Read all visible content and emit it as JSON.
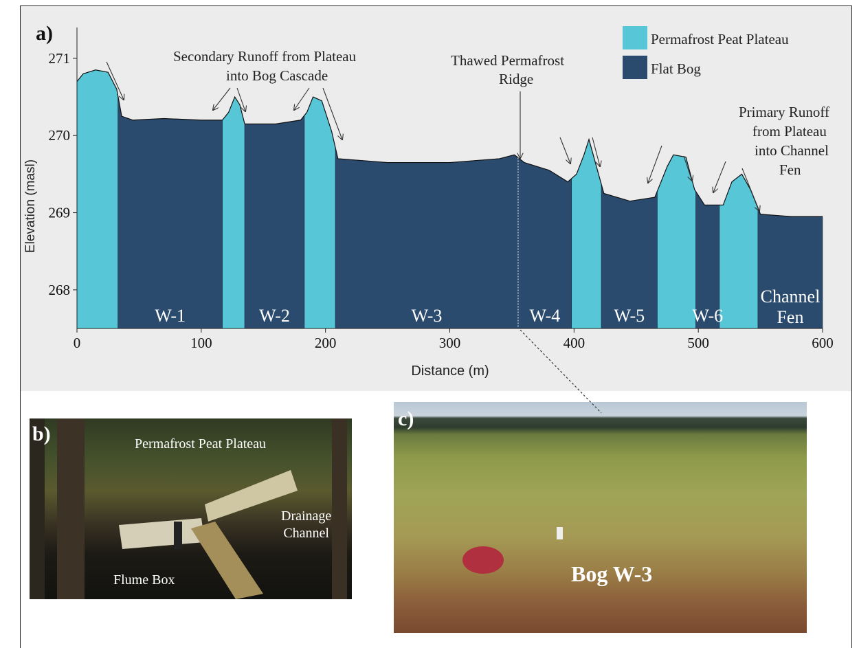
{
  "panels": {
    "a_label": "a)",
    "b_label": "b)",
    "c_label": "c)"
  },
  "annotations": {
    "secondary_runoff_line1": "Secondary Runoff from Plateau",
    "secondary_runoff_line2": "into Bog Cascade",
    "thawed_ridge_line1": "Thawed Permafrost",
    "thawed_ridge_line2": "Ridge",
    "primary_runoff_line1": "Primary Runoff",
    "primary_runoff_line2": "from Plateau",
    "primary_runoff_line3": "into Channel",
    "primary_runoff_line4": "Fen"
  },
  "photo_b": {
    "plateau_label": "Permafrost Peat Plateau",
    "drainage_line1": "Drainage",
    "drainage_line2": "Channel",
    "flume_label": "Flume Box"
  },
  "photo_c": {
    "bog_label": "Bog W-3"
  },
  "colors": {
    "plateau": "#57c6d6",
    "bog": "#2a4a6e",
    "chart_bg": "#ececec"
  },
  "chart_data": {
    "type": "area",
    "xlabel": "Distance (m)",
    "ylabel": "Elevation (masl)",
    "xlim": [
      0,
      600
    ],
    "ylim": [
      267.5,
      271.4
    ],
    "xticks": [
      "0",
      "100",
      "200",
      "300",
      "400",
      "500",
      "600"
    ],
    "yticks": [
      "268",
      "269",
      "270",
      "271"
    ],
    "legend": [
      {
        "name": "Permafrost Peat Plateau",
        "color": "#57c6d6"
      },
      {
        "name": "Flat Bog",
        "color": "#2a4a6e"
      }
    ],
    "legend_position": "top-right",
    "profile": [
      {
        "x": 0,
        "y": 270.7
      },
      {
        "x": 5,
        "y": 270.8
      },
      {
        "x": 15,
        "y": 270.85
      },
      {
        "x": 25,
        "y": 270.82
      },
      {
        "x": 32,
        "y": 270.6
      },
      {
        "x": 36,
        "y": 270.25
      },
      {
        "x": 45,
        "y": 270.2
      },
      {
        "x": 70,
        "y": 270.22
      },
      {
        "x": 100,
        "y": 270.2
      },
      {
        "x": 117,
        "y": 270.2
      },
      {
        "x": 122,
        "y": 270.3
      },
      {
        "x": 127,
        "y": 270.5
      },
      {
        "x": 131,
        "y": 270.4
      },
      {
        "x": 135,
        "y": 270.15
      },
      {
        "x": 160,
        "y": 270.15
      },
      {
        "x": 180,
        "y": 270.2
      },
      {
        "x": 185,
        "y": 270.3
      },
      {
        "x": 190,
        "y": 270.5
      },
      {
        "x": 197,
        "y": 270.45
      },
      {
        "x": 205,
        "y": 270.05
      },
      {
        "x": 210,
        "y": 269.7
      },
      {
        "x": 250,
        "y": 269.65
      },
      {
        "x": 300,
        "y": 269.65
      },
      {
        "x": 340,
        "y": 269.7
      },
      {
        "x": 352,
        "y": 269.75
      },
      {
        "x": 360,
        "y": 269.65
      },
      {
        "x": 380,
        "y": 269.55
      },
      {
        "x": 395,
        "y": 269.4
      },
      {
        "x": 402,
        "y": 269.5
      },
      {
        "x": 408,
        "y": 269.75
      },
      {
        "x": 412,
        "y": 269.95
      },
      {
        "x": 418,
        "y": 269.6
      },
      {
        "x": 424,
        "y": 269.25
      },
      {
        "x": 445,
        "y": 269.15
      },
      {
        "x": 465,
        "y": 269.2
      },
      {
        "x": 475,
        "y": 269.6
      },
      {
        "x": 480,
        "y": 269.75
      },
      {
        "x": 490,
        "y": 269.72
      },
      {
        "x": 497,
        "y": 269.3
      },
      {
        "x": 505,
        "y": 269.1
      },
      {
        "x": 520,
        "y": 269.1
      },
      {
        "x": 527,
        "y": 269.4
      },
      {
        "x": 535,
        "y": 269.5
      },
      {
        "x": 542,
        "y": 269.3
      },
      {
        "x": 550,
        "y": 268.98
      },
      {
        "x": 575,
        "y": 268.95
      },
      {
        "x": 600,
        "y": 268.95
      }
    ],
    "segments": [
      {
        "type": "plateau",
        "x0": 0,
        "x1": 33,
        "label": ""
      },
      {
        "type": "bog",
        "x0": 33,
        "x1": 117,
        "label": "W-1"
      },
      {
        "type": "plateau",
        "x0": 117,
        "x1": 135,
        "label": ""
      },
      {
        "type": "bog",
        "x0": 135,
        "x1": 183,
        "label": "W-2"
      },
      {
        "type": "plateau",
        "x0": 183,
        "x1": 208,
        "label": ""
      },
      {
        "type": "bog",
        "x0": 208,
        "x1": 398,
        "label": "W-3"
      },
      {
        "type": "bog",
        "x0": 355,
        "x1": 398,
        "label": "W-4"
      },
      {
        "type": "plateau",
        "x0": 398,
        "x1": 422,
        "label": ""
      },
      {
        "type": "bog",
        "x0": 422,
        "x1": 467,
        "label": "W-5"
      },
      {
        "type": "plateau",
        "x0": 467,
        "x1": 498,
        "label": ""
      },
      {
        "type": "bog",
        "x0": 498,
        "x1": 517,
        "label": "W-6"
      },
      {
        "type": "plateau",
        "x0": 517,
        "x1": 548,
        "label": ""
      },
      {
        "type": "bog",
        "x0": 548,
        "x1": 600,
        "label": "Channel Fen"
      }
    ]
  }
}
